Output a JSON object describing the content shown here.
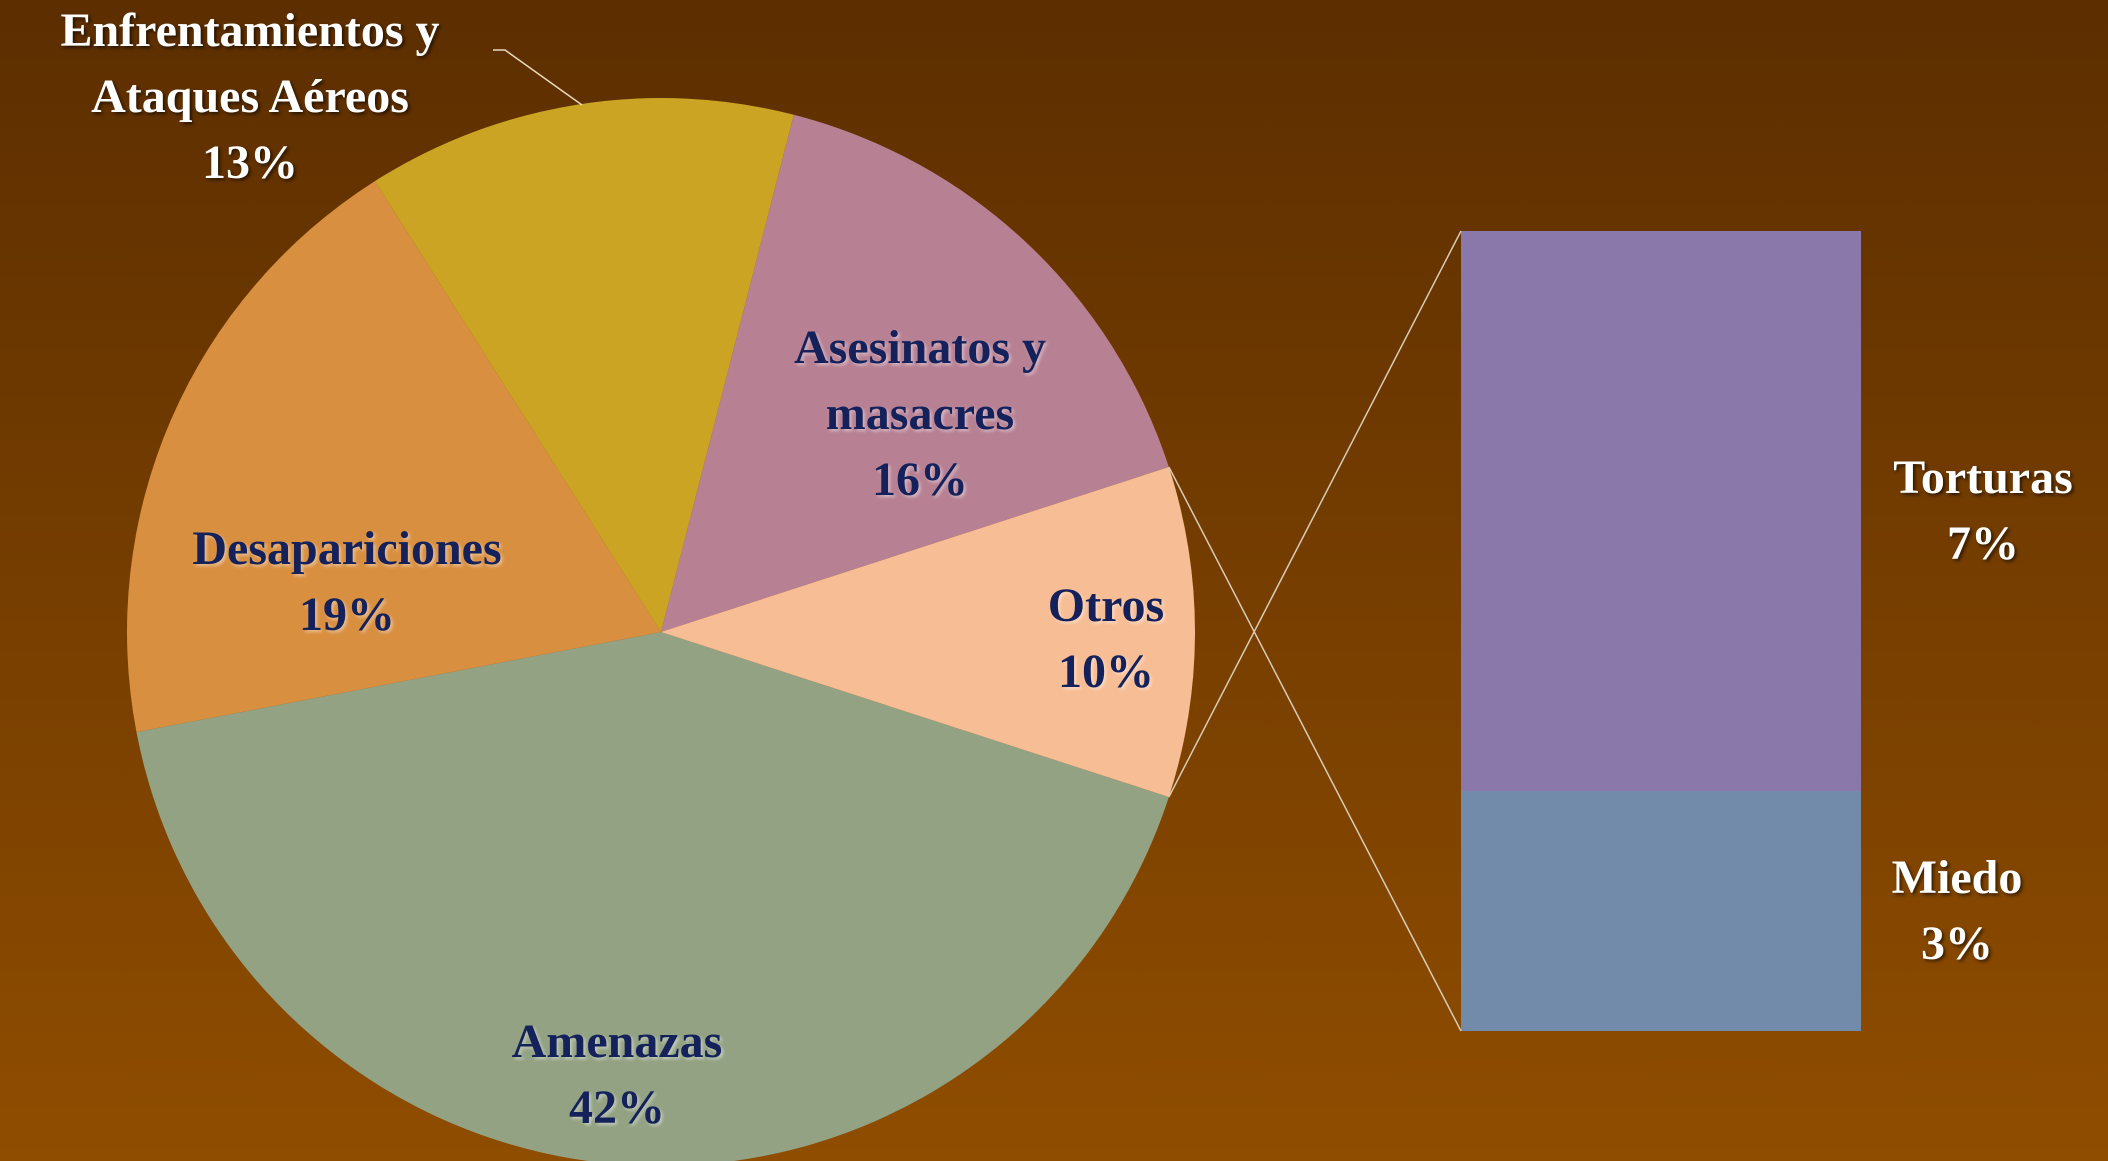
{
  "chart_data": {
    "type": "pie-of-bar",
    "categories": [
      "Amenazas",
      "Desapariciones",
      "Enfrentamientos y Ataques Aéreos",
      "Asesinatos y masacres",
      "Otros"
    ],
    "values": [
      42,
      19,
      13,
      16,
      10
    ],
    "value_labels": [
      "42%",
      "19%",
      "13%",
      "16%",
      "10%"
    ],
    "colors": [
      "#93a283",
      "#d98f40",
      "#cba424",
      "#b78093",
      "#f7bd94"
    ],
    "breakout": {
      "categories": [
        "Torturas",
        "Miedo"
      ],
      "values": [
        7,
        3
      ],
      "value_labels": [
        "7%",
        "3%"
      ],
      "colors": [
        "#8a78aa",
        "#728baa"
      ]
    }
  }
}
